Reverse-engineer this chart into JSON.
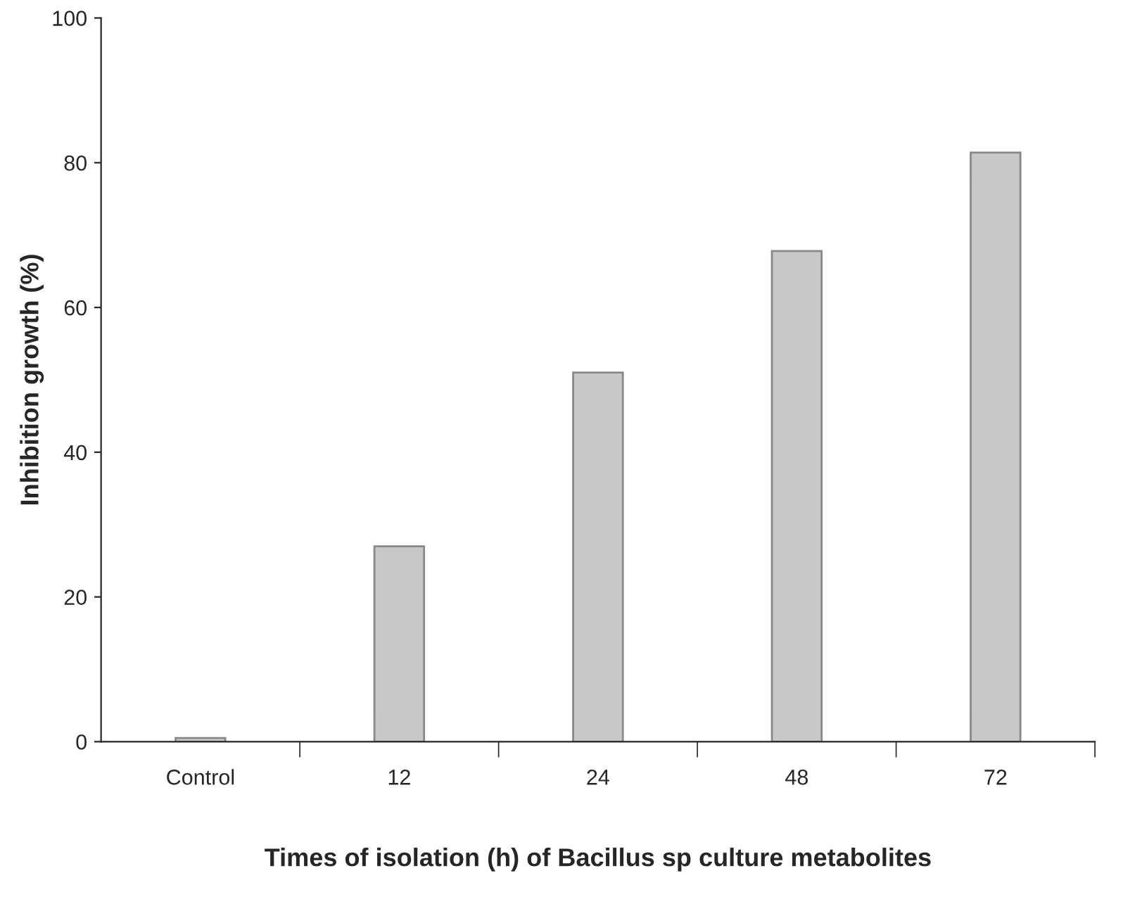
{
  "chart_data": {
    "type": "bar",
    "categories": [
      "Control",
      "12",
      "24",
      "48",
      "72"
    ],
    "values": [
      0.5,
      27,
      51,
      67.8,
      81.4
    ],
    "color": "#c8c8c8",
    "xlabel": "Times of isolation (h) of Bacillus sp culture metabolites",
    "ylabel": "Inhibition growth (%)",
    "ylim": [
      0,
      100
    ],
    "yticks": [
      0,
      20,
      40,
      60,
      80,
      100
    ],
    "grid": false,
    "legend": false
  }
}
